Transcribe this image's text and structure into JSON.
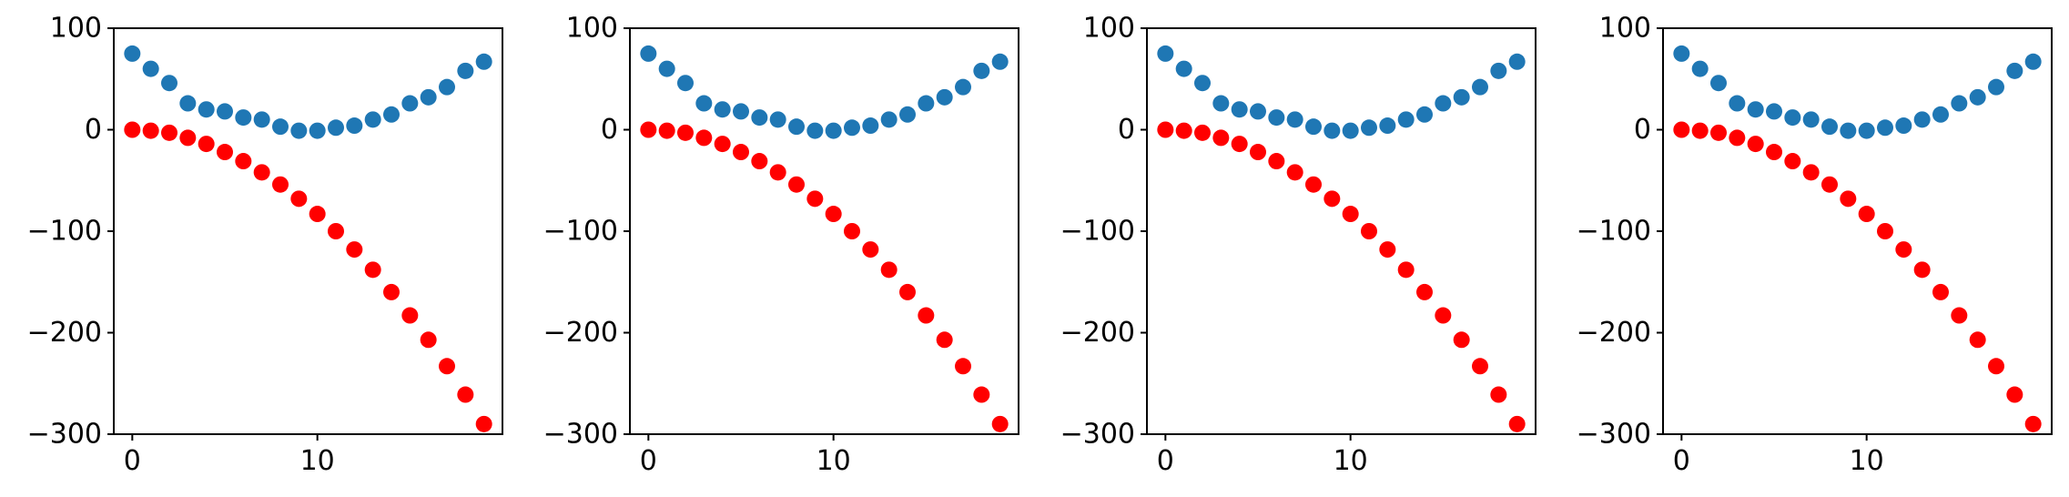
{
  "chart_data": [
    {
      "type": "scatter",
      "title": "",
      "xlabel": "",
      "ylabel": "",
      "xlim": [
        -1,
        20
      ],
      "ylim": [
        -300,
        100
      ],
      "xticks": [
        0,
        10
      ],
      "yticks": [
        100,
        0,
        -100,
        -200,
        -300
      ],
      "xtick_labels": [
        "0",
        "10"
      ],
      "ytick_labels": [
        "100",
        "0",
        "−100",
        "−200",
        "−300"
      ],
      "grid": false,
      "series": [
        {
          "color": "#1f77b4",
          "x": [
            0,
            1,
            2,
            3,
            4,
            5,
            6,
            7,
            8,
            9,
            10,
            11,
            12,
            13,
            14,
            15,
            16,
            17,
            18,
            19
          ],
          "y": [
            75,
            60,
            46,
            26,
            20,
            18,
            12,
            10,
            3,
            -1,
            -1,
            2,
            4,
            10,
            15,
            26,
            32,
            42,
            58,
            67
          ]
        },
        {
          "color": "#ff0000",
          "x": [
            0,
            1,
            2,
            3,
            4,
            5,
            6,
            7,
            8,
            9,
            10,
            11,
            12,
            13,
            14,
            15,
            16,
            17,
            18,
            19
          ],
          "y": [
            0,
            -1,
            -3,
            -8,
            -14,
            -22,
            -31,
            -42,
            -54,
            -68,
            -83,
            -100,
            -118,
            -138,
            -160,
            -183,
            -207,
            -233,
            -261,
            -290
          ]
        }
      ]
    },
    {
      "type": "scatter",
      "title": "",
      "xlabel": "",
      "ylabel": "",
      "xlim": [
        -1,
        20
      ],
      "ylim": [
        -300,
        100
      ],
      "xticks": [
        0,
        10
      ],
      "yticks": [
        100,
        0,
        -100,
        -200,
        -300
      ],
      "xtick_labels": [
        "0",
        "10"
      ],
      "ytick_labels": [
        "100",
        "0",
        "−100",
        "−200",
        "−300"
      ],
      "grid": false,
      "series": [
        {
          "color": "#1f77b4",
          "x": [
            0,
            1,
            2,
            3,
            4,
            5,
            6,
            7,
            8,
            9,
            10,
            11,
            12,
            13,
            14,
            15,
            16,
            17,
            18,
            19
          ],
          "y": [
            75,
            60,
            46,
            26,
            20,
            18,
            12,
            10,
            3,
            -1,
            -1,
            2,
            4,
            10,
            15,
            26,
            32,
            42,
            58,
            67
          ]
        },
        {
          "color": "#ff0000",
          "x": [
            0,
            1,
            2,
            3,
            4,
            5,
            6,
            7,
            8,
            9,
            10,
            11,
            12,
            13,
            14,
            15,
            16,
            17,
            18,
            19
          ],
          "y": [
            0,
            -1,
            -3,
            -8,
            -14,
            -22,
            -31,
            -42,
            -54,
            -68,
            -83,
            -100,
            -118,
            -138,
            -160,
            -183,
            -207,
            -233,
            -261,
            -290
          ]
        }
      ]
    },
    {
      "type": "scatter",
      "title": "",
      "xlabel": "",
      "ylabel": "",
      "xlim": [
        -1,
        20
      ],
      "ylim": [
        -300,
        100
      ],
      "xticks": [
        0,
        10
      ],
      "yticks": [
        100,
        0,
        -100,
        -200,
        -300
      ],
      "xtick_labels": [
        "0",
        "10"
      ],
      "ytick_labels": [
        "100",
        "0",
        "−100",
        "−200",
        "−300"
      ],
      "grid": false,
      "series": [
        {
          "color": "#1f77b4",
          "x": [
            0,
            1,
            2,
            3,
            4,
            5,
            6,
            7,
            8,
            9,
            10,
            11,
            12,
            13,
            14,
            15,
            16,
            17,
            18,
            19
          ],
          "y": [
            75,
            60,
            46,
            26,
            20,
            18,
            12,
            10,
            3,
            -1,
            -1,
            2,
            4,
            10,
            15,
            26,
            32,
            42,
            58,
            67
          ]
        },
        {
          "color": "#ff0000",
          "x": [
            0,
            1,
            2,
            3,
            4,
            5,
            6,
            7,
            8,
            9,
            10,
            11,
            12,
            13,
            14,
            15,
            16,
            17,
            18,
            19
          ],
          "y": [
            0,
            -1,
            -3,
            -8,
            -14,
            -22,
            -31,
            -42,
            -54,
            -68,
            -83,
            -100,
            -118,
            -138,
            -160,
            -183,
            -207,
            -233,
            -261,
            -290
          ]
        }
      ]
    },
    {
      "type": "scatter",
      "title": "",
      "xlabel": "",
      "ylabel": "",
      "xlim": [
        -1,
        20
      ],
      "ylim": [
        -300,
        100
      ],
      "xticks": [
        0,
        10
      ],
      "yticks": [
        100,
        0,
        -100,
        -200,
        -300
      ],
      "xtick_labels": [
        "0",
        "10"
      ],
      "ytick_labels": [
        "100",
        "0",
        "−100",
        "−200",
        "−300"
      ],
      "grid": false,
      "series": [
        {
          "color": "#1f77b4",
          "x": [
            0,
            1,
            2,
            3,
            4,
            5,
            6,
            7,
            8,
            9,
            10,
            11,
            12,
            13,
            14,
            15,
            16,
            17,
            18,
            19
          ],
          "y": [
            75,
            60,
            46,
            26,
            20,
            18,
            12,
            10,
            3,
            -1,
            -1,
            2,
            4,
            10,
            15,
            26,
            32,
            42,
            58,
            67
          ]
        },
        {
          "color": "#ff0000",
          "x": [
            0,
            1,
            2,
            3,
            4,
            5,
            6,
            7,
            8,
            9,
            10,
            11,
            12,
            13,
            14,
            15,
            16,
            17,
            18,
            19
          ],
          "y": [
            0,
            -1,
            -3,
            -8,
            -14,
            -22,
            -31,
            -42,
            -54,
            -68,
            -83,
            -100,
            -118,
            -138,
            -160,
            -183,
            -207,
            -233,
            -261,
            -290
          ]
        }
      ]
    }
  ]
}
